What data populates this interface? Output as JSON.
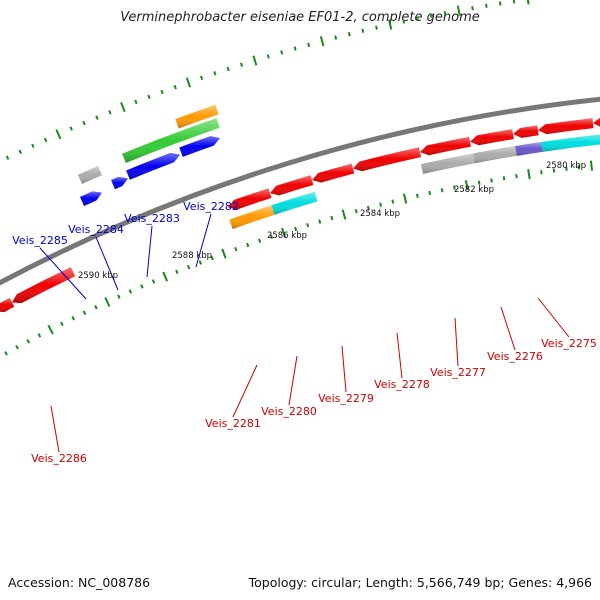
{
  "title": "Verminephrobacter eiseniae EF01-2, complete genome",
  "footer": {
    "accession": "Accession: NC_008786",
    "topology": "Topology: circular; Length: 5,566,749 bp; Genes: 4,966"
  },
  "colors": {
    "backbone": "#777777",
    "tick": "#1a8a1a",
    "forward_label": "#0000cc",
    "reverse_label": "#cc0000",
    "red": "#ee0000",
    "blue": "#0000ee",
    "green": "#33cc33",
    "orange": "#ff9900",
    "cyan": "#00dddd",
    "gray": "#aaaaaa",
    "purple": "#6655cc"
  },
  "scale_labels": [
    "2580 kbp",
    "2582 kbp",
    "2584 kbp",
    "2586 kbp",
    "2588 kbp",
    "2590 kbp"
  ],
  "forward_genes": [
    "Veis_2282",
    "Veis_2283",
    "Veis_2284",
    "Veis_2285"
  ],
  "reverse_genes": [
    "Veis_2275",
    "Veis_2276",
    "Veis_2277",
    "Veis_2278",
    "Veis_2279",
    "Veis_2280",
    "Veis_2281",
    "Veis_2286"
  ]
}
